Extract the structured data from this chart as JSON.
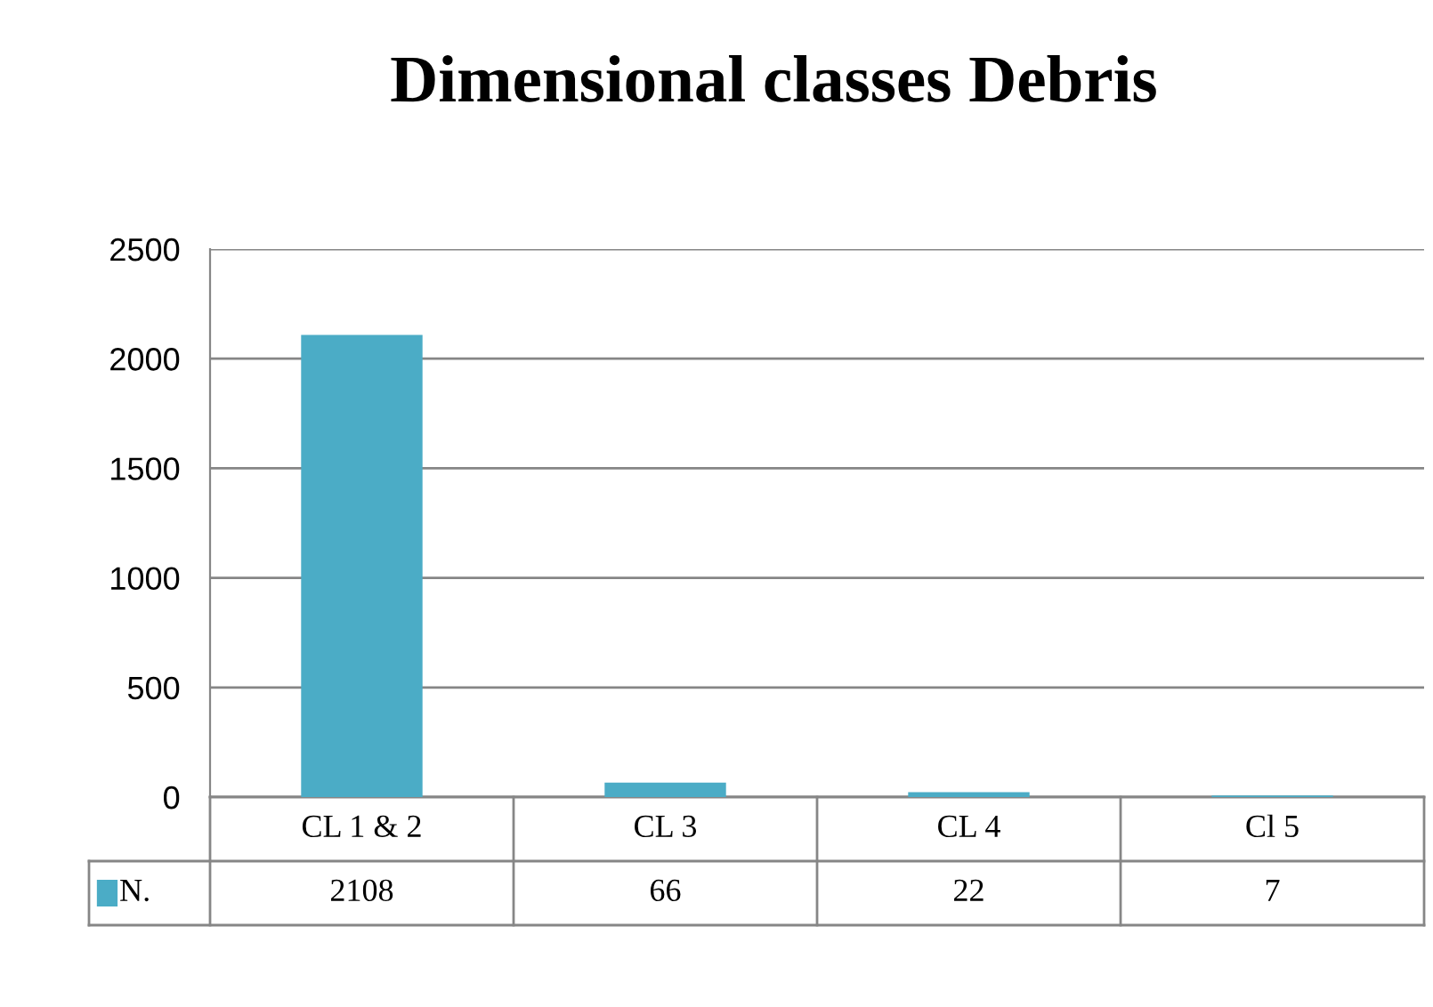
{
  "chart_data": {
    "type": "bar",
    "title": "Dimensional classes Debris",
    "categories": [
      "CL 1 & 2",
      "CL 3",
      "CL 4",
      "Cl 5"
    ],
    "series": [
      {
        "name": "N.",
        "color": "#4bacc6",
        "values": [
          2108,
          66,
          22,
          7
        ]
      }
    ],
    "ylim": [
      0,
      2500
    ],
    "yticks": [
      0,
      500,
      1000,
      1500,
      2000,
      2500
    ],
    "grid": "y",
    "data_labels": true,
    "legend": "bottom left"
  }
}
